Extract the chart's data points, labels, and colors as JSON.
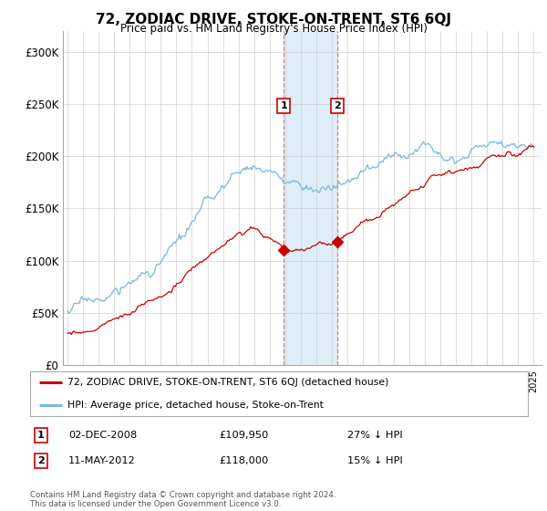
{
  "title": "72, ZODIAC DRIVE, STOKE-ON-TRENT, ST6 6QJ",
  "subtitle": "Price paid vs. HM Land Registry's House Price Index (HPI)",
  "ylabel_ticks": [
    "£0",
    "£50K",
    "£100K",
    "£150K",
    "£200K",
    "£250K",
    "£300K"
  ],
  "ytick_values": [
    0,
    50000,
    100000,
    150000,
    200000,
    250000,
    300000
  ],
  "ylim": [
    0,
    320000
  ],
  "xlim_start": 1994.7,
  "xlim_end": 2025.5,
  "transaction1_date": "02-DEC-2008",
  "transaction1_price": 109950,
  "transaction1_x": 2008.92,
  "transaction1_label": "1",
  "transaction1_hpi_diff": "27% ↓ HPI",
  "transaction2_date": "11-MAY-2012",
  "transaction2_price": 118000,
  "transaction2_x": 2012.37,
  "transaction2_label": "2",
  "transaction2_hpi_diff": "15% ↓ HPI",
  "legend_entry1": "72, ZODIAC DRIVE, STOKE-ON-TRENT, ST6 6QJ (detached house)",
  "legend_entry2": "HPI: Average price, detached house, Stoke-on-Trent",
  "footer": "Contains HM Land Registry data © Crown copyright and database right 2024.\nThis data is licensed under the Open Government Licence v3.0.",
  "line_color_hpi": "#7ab8d9",
  "line_color_price": "#cc0000",
  "marker_color": "#cc0000",
  "highlight_color": "#ddeef8",
  "dashed_color": "#e08080",
  "background_color": "#ffffff",
  "grid_color": "#d0d0d0",
  "hpi_anchors_x": [
    1995,
    1997,
    1999,
    2001,
    2003,
    2005,
    2007,
    2008,
    2009,
    2010,
    2011,
    2012,
    2013,
    2014,
    2015,
    2016,
    2017,
    2018,
    2019,
    2020,
    2021,
    2022,
    2023,
    2024,
    2025
  ],
  "hpi_anchors_y": [
    52000,
    60000,
    72000,
    95000,
    120000,
    148000,
    172000,
    162000,
    148000,
    148000,
    148000,
    145000,
    150000,
    158000,
    163000,
    170000,
    178000,
    185000,
    190000,
    193000,
    200000,
    210000,
    208000,
    205000,
    215000
  ],
  "price_anchors_x": [
    1995,
    1997,
    1999,
    2001,
    2003,
    2005,
    2007,
    2008,
    2009,
    2010,
    2011,
    2012,
    2013,
    2014,
    2015,
    2016,
    2017,
    2018,
    2019,
    2020,
    2021,
    2022,
    2023,
    2024,
    2025
  ],
  "price_anchors_y": [
    30000,
    36000,
    46000,
    62000,
    82000,
    105000,
    120000,
    112000,
    100000,
    98000,
    98000,
    100000,
    108000,
    118000,
    125000,
    133000,
    142000,
    150000,
    155000,
    158000,
    165000,
    175000,
    175000,
    172000,
    183000
  ],
  "hpi_noise_scale": 1800,
  "price_noise_scale": 900,
  "n_points": 360,
  "random_seed": 17
}
